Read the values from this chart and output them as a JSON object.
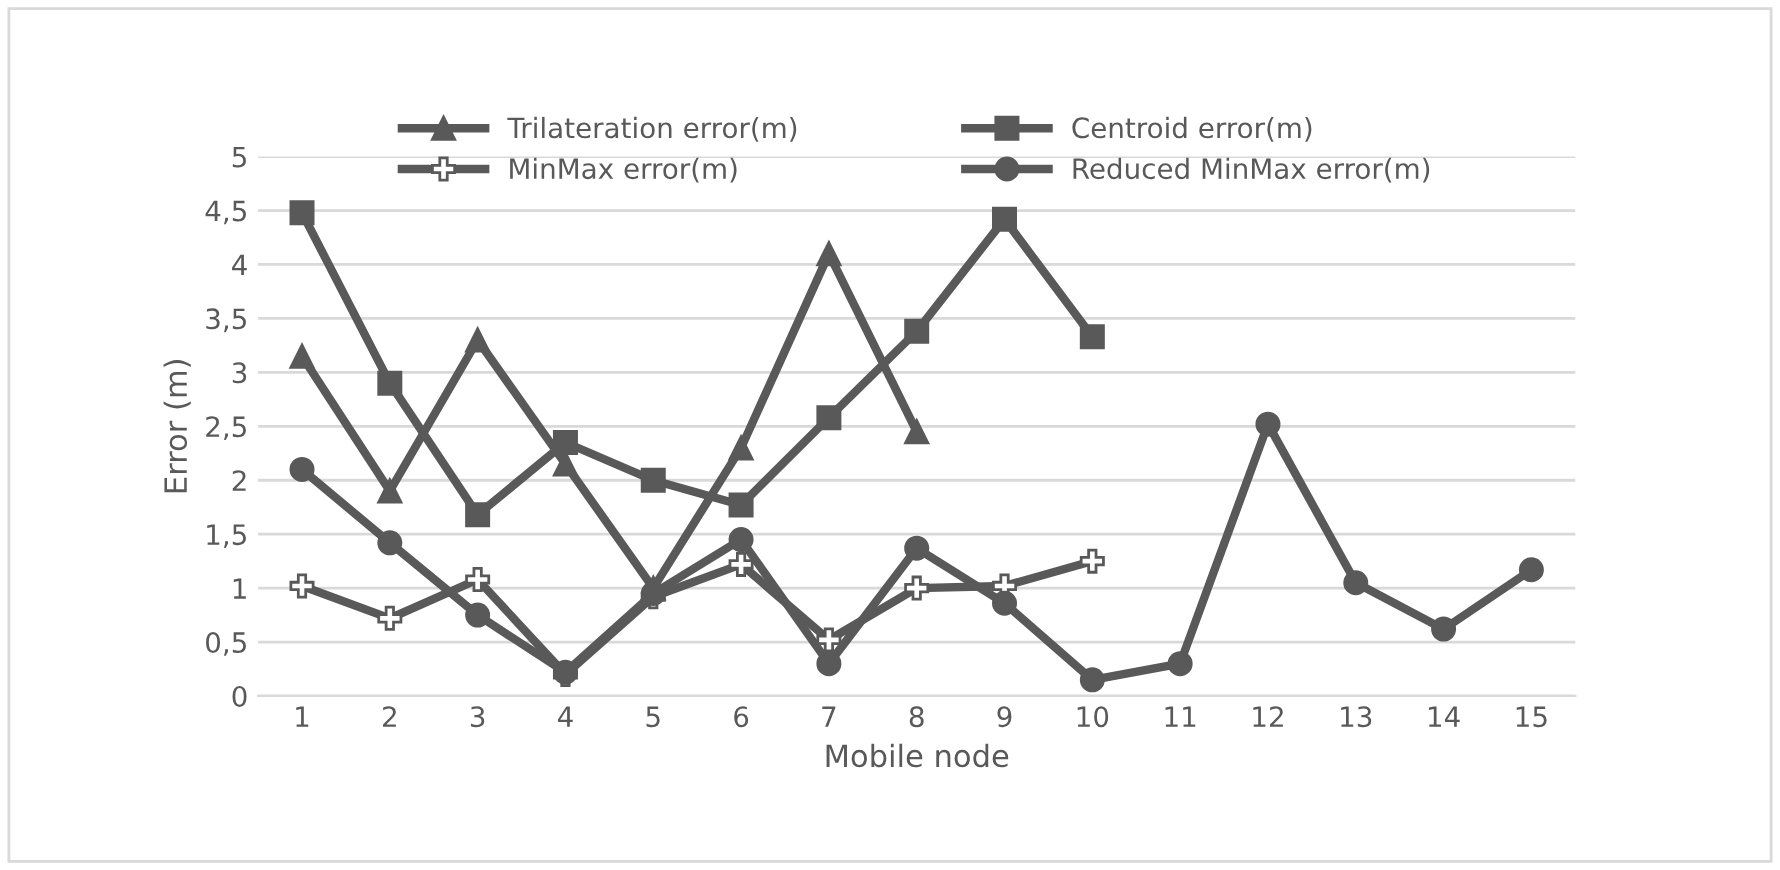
{
  "chart_data": {
    "type": "line",
    "xlabel": "Mobile node",
    "ylabel": "Error (m)",
    "categories": [
      "1",
      "2",
      "3",
      "4",
      "5",
      "6",
      "7",
      "8",
      "9",
      "10",
      "11",
      "12",
      "13",
      "14",
      "15"
    ],
    "series": [
      {
        "name": "Trilateration error(m)",
        "color": "#595959",
        "marker": "triangle",
        "values": [
          3.15,
          1.9,
          3.3,
          2.15,
          1.0,
          2.3,
          4.1,
          2.45,
          null,
          null,
          null,
          null,
          null,
          null,
          null
        ]
      },
      {
        "name": "Centroid error(m)",
        "color": "#595959",
        "marker": "square",
        "values": [
          4.48,
          2.9,
          1.68,
          2.35,
          2.0,
          1.77,
          2.58,
          3.38,
          4.42,
          3.33,
          null,
          null,
          null,
          null,
          null
        ]
      },
      {
        "name": "MinMax error(m)",
        "color": "#595959",
        "marker": "cross",
        "values": [
          1.02,
          0.72,
          1.08,
          0.2,
          0.92,
          1.22,
          0.52,
          1.0,
          1.02,
          1.25,
          null,
          null,
          null,
          null,
          null
        ]
      },
      {
        "name": "Reduced MinMax error(m)",
        "color": "#595959",
        "marker": "circle",
        "values": [
          2.1,
          1.42,
          0.75,
          0.22,
          0.95,
          1.45,
          0.3,
          1.37,
          0.86,
          0.15,
          0.3,
          2.52,
          1.05,
          0.62,
          1.17
        ]
      }
    ],
    "ylim": [
      0,
      5
    ],
    "yticks": [
      0,
      {
        "value": 0.5,
        "label": "0,5"
      },
      1,
      {
        "value": 1.5,
        "label": "1,5"
      },
      2,
      {
        "value": 2.5,
        "label": "2,5"
      },
      3,
      {
        "value": 3.5,
        "label": "3,5"
      },
      4,
      {
        "value": 4.5,
        "label": "4,5"
      },
      5
    ],
    "grid": "y",
    "legend": "top",
    "line_style": "solid"
  }
}
